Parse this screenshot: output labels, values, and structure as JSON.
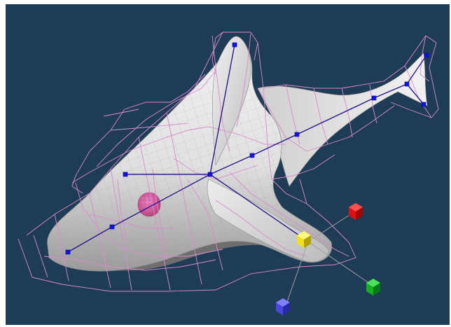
{
  "viewport": {
    "background_color": "#1f3c56",
    "body_color": "#e4e4e4",
    "shade_color": "#6e6e6e",
    "wire_color": "#d98bcf",
    "skeleton_color": "#2a1a8a",
    "joint_color": "#1010f0",
    "eye_color": "#e070b8"
  },
  "gizmo": {
    "center_color": "#f0e020",
    "x_axis_color": "#e01010",
    "y_axis_color": "#10b020",
    "z_axis_color": "#4848e0",
    "line_color": "#a0a0a0"
  }
}
